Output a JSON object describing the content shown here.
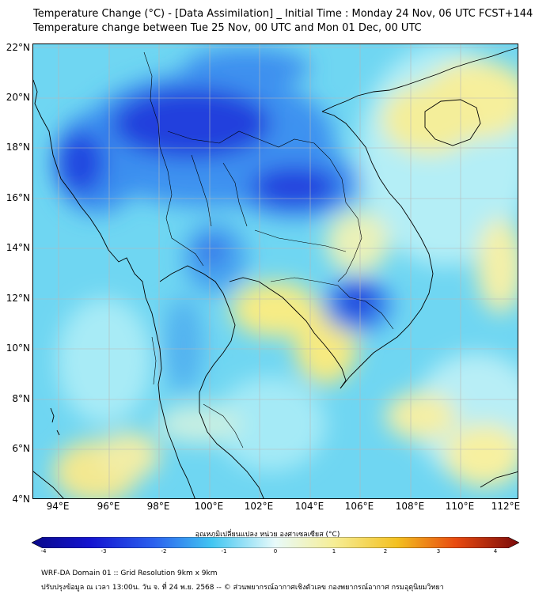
{
  "header": {
    "title_line1": "Temperature Change (°C) - [Data Assimilation] _ Initial Time : Monday 24 Nov, 06 UTC FCST+144",
    "title_line2": "Temperature change between Tue 25 Nov, 00 UTC and Mon 01 Dec, 00 UTC"
  },
  "map": {
    "lat_labels": [
      "22°N",
      "20°N",
      "18°N",
      "16°N",
      "14°N",
      "12°N",
      "10°N",
      "8°N",
      "6°N",
      "4°N"
    ],
    "lon_labels": [
      "94°E",
      "96°E",
      "98°E",
      "100°E",
      "102°E",
      "104°E",
      "106°E",
      "108°E",
      "110°E",
      "112°E"
    ],
    "colors": {
      "deep_blue": "#1a2fd6",
      "mid_blue": "#3a8bf0",
      "light_blue": "#5fd3f3",
      "pale_cyan": "#a9ecf7",
      "pale_yellow": "#f5f0a8",
      "yellow": "#f3e35a",
      "coast": "#000000",
      "grid": "#b0b0b0"
    }
  },
  "colorbar": {
    "title": "อุณหภูมิเปลี่ยนแปลง หน่วย องศาเซลเซียส (°C)",
    "ticks": [
      "-4",
      "-3",
      "-2",
      "-1",
      "0",
      "1",
      "2",
      "3",
      "4"
    ]
  },
  "footer": {
    "line1": "WRF-DA Domain 01 :: Grid Resolution 9km x 9km",
    "line2": "ปรับปรุงข้อมูล ณ เวลา 13:00น. วัน จ. ที่ 24 พ.ย. 2568 -- © ส่วนพยากรณ์อากาศเชิงตัวเลข กองพยากรณ์อากาศ กรมอุตุนิยมวิทยา"
  }
}
